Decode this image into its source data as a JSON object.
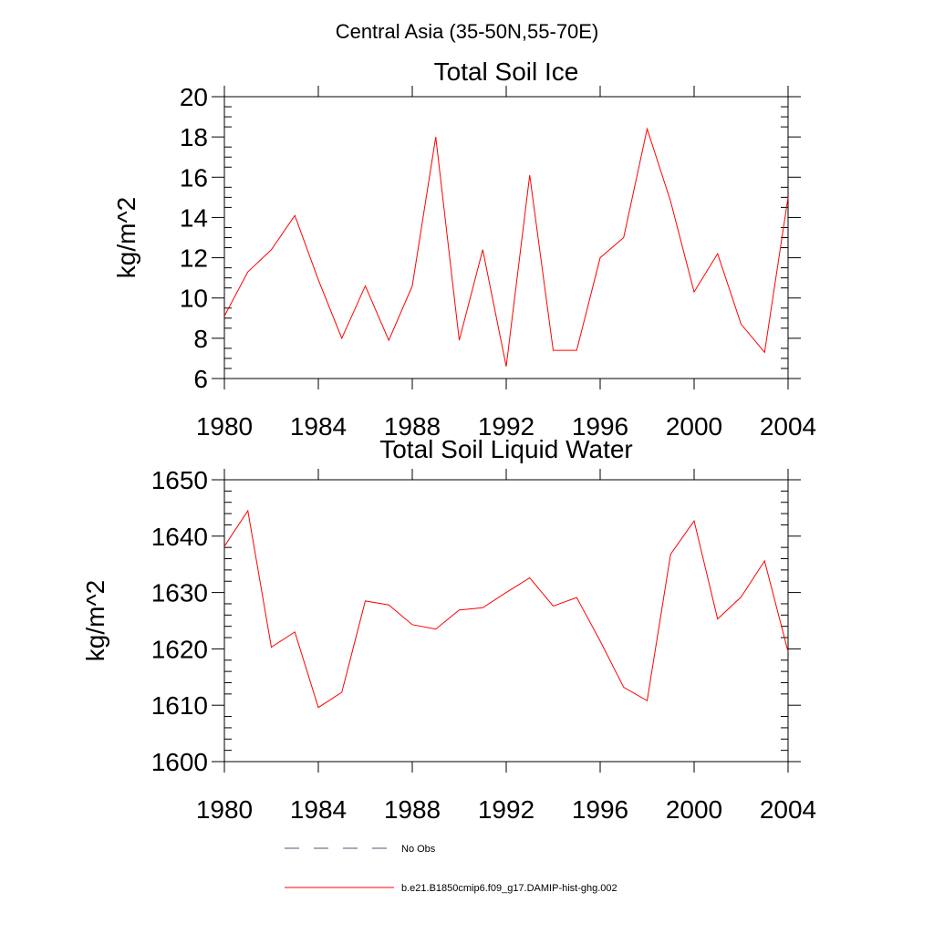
{
  "figure": {
    "suptitle": "Central Asia (35-50N,55-70E)"
  },
  "colors": {
    "series": "#ff0000",
    "no_obs": "#4a5a80",
    "axes": "#000000"
  },
  "chart_data": [
    {
      "type": "line",
      "title": "Total Soil Ice",
      "ylabel": "kg/m^2",
      "xlabel": "",
      "xlim": [
        1980,
        2004
      ],
      "ylim": [
        6,
        20
      ],
      "xticks": [
        1980,
        1984,
        1988,
        1992,
        1996,
        2000,
        2004
      ],
      "yticks": [
        6,
        8,
        10,
        12,
        14,
        16,
        18,
        20
      ],
      "x": [
        1980,
        1981,
        1982,
        1983,
        1984,
        1985,
        1986,
        1987,
        1988,
        1989,
        1990,
        1991,
        1992,
        1993,
        1994,
        1995,
        1996,
        1997,
        1998,
        1999,
        2000,
        2001,
        2002,
        2003,
        2004
      ],
      "series": [
        {
          "name": "b.e21.B1850cmip6.f09_g17.DAMIP-hist-ghg.002",
          "values": [
            9.1,
            11.3,
            12.4,
            14.1,
            10.9,
            8.0,
            10.6,
            7.9,
            10.6,
            18.0,
            7.9,
            12.4,
            6.6,
            16.1,
            7.4,
            7.4,
            12.0,
            13.0,
            18.4,
            14.8,
            10.3,
            12.2,
            8.7,
            7.3,
            15.0
          ]
        }
      ]
    },
    {
      "type": "line",
      "title": "Total Soil Liquid Water",
      "ylabel": "kg/m^2",
      "xlabel": "",
      "xlim": [
        1980,
        2004
      ],
      "ylim": [
        1600,
        1650
      ],
      "xticks": [
        1980,
        1984,
        1988,
        1992,
        1996,
        2000,
        2004
      ],
      "yticks": [
        1600,
        1610,
        1620,
        1630,
        1640,
        1650
      ],
      "x": [
        1980,
        1981,
        1982,
        1983,
        1984,
        1985,
        1986,
        1987,
        1988,
        1989,
        1990,
        1991,
        1992,
        1993,
        1994,
        1995,
        1996,
        1997,
        1998,
        1999,
        2000,
        2001,
        2002,
        2003,
        2004
      ],
      "series": [
        {
          "name": "b.e21.B1850cmip6.f09_g17.DAMIP-hist-ghg.002",
          "values": [
            1638.2,
            1644.5,
            1620.3,
            1623.0,
            1609.6,
            1612.3,
            1628.5,
            1627.8,
            1624.3,
            1623.5,
            1626.9,
            1627.3,
            1630.0,
            1632.6,
            1627.6,
            1629.1,
            1621.4,
            1613.2,
            1610.8,
            1636.8,
            1642.7,
            1625.3,
            1629.2,
            1635.6,
            1619.5
          ]
        }
      ]
    }
  ],
  "legend": {
    "placement": "bottom-center",
    "items": [
      {
        "label": "No Obs",
        "style": "dashed"
      },
      {
        "label": "b.e21.B1850cmip6.f09_g17.DAMIP-hist-ghg.002",
        "style": "solid"
      }
    ]
  }
}
